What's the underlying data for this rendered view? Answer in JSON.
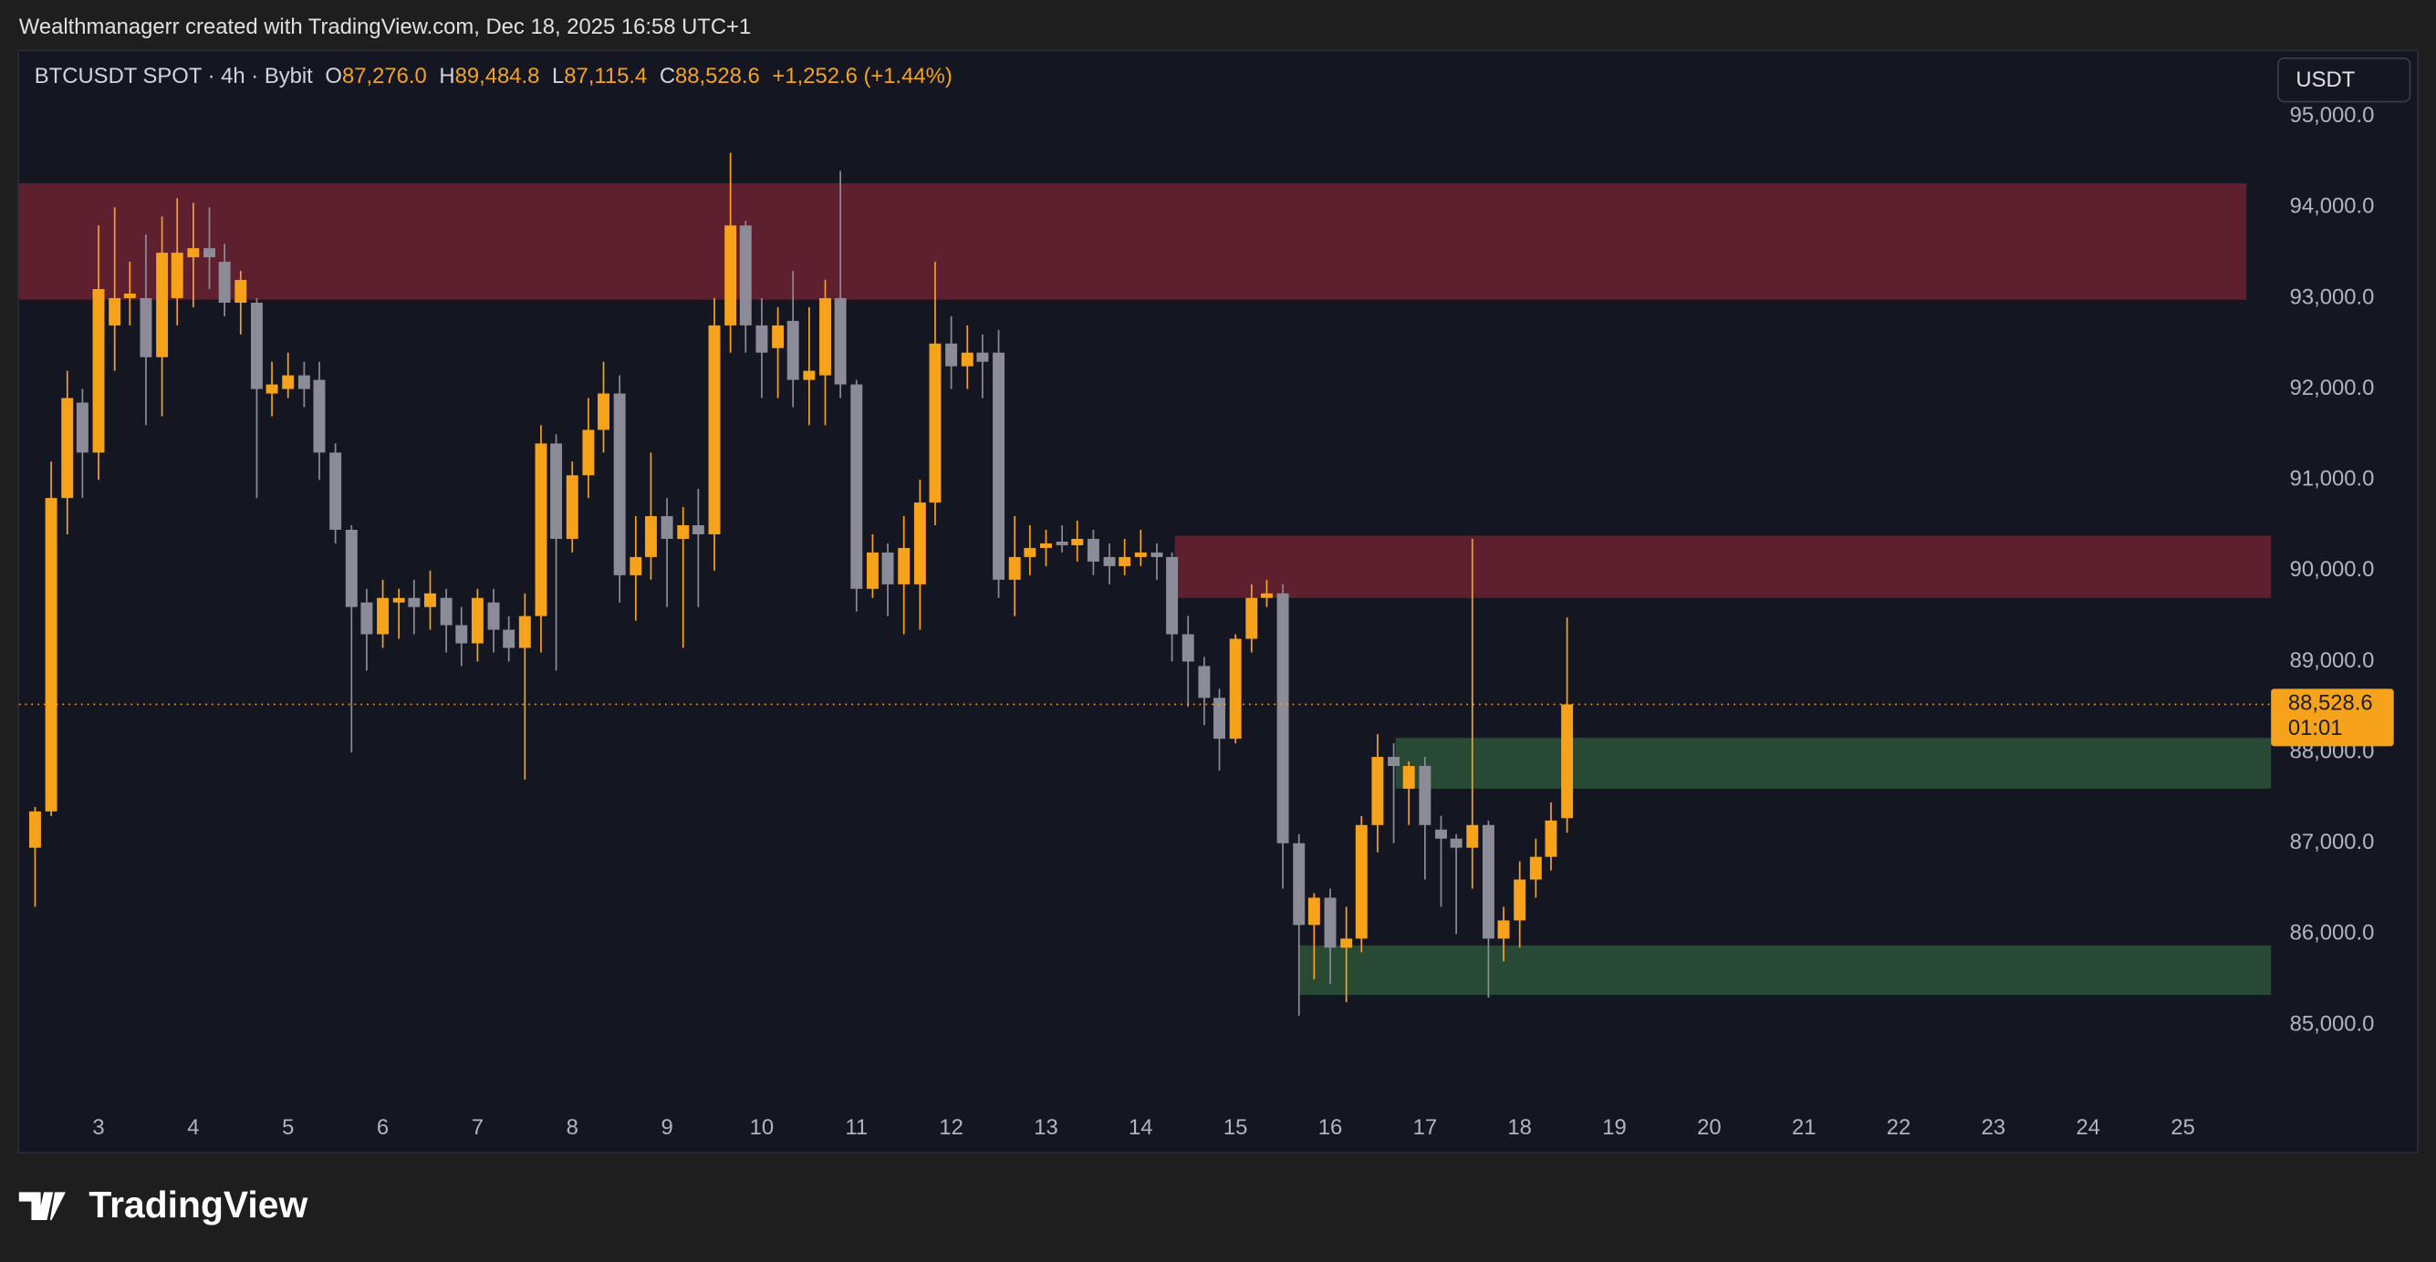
{
  "header": {
    "attribution": "Wealthmanagerr created with TradingView.com, Dec 18, 2025 16:58 UTC+1",
    "currency": "USDT",
    "brand": "TradingView"
  },
  "chart_data": {
    "type": "candlestick",
    "symbol": "BTCUSDT SPOT · 4h · Bybit",
    "legend_fields": [
      {
        "key": "O",
        "value": "87,276.0"
      },
      {
        "key": "H",
        "value": "89,484.8"
      },
      {
        "key": "L",
        "value": "87,115.4"
      },
      {
        "key": "C",
        "value": "88,528.6"
      }
    ],
    "change": "+1,252.6 (+1.44%)",
    "up_color": "#f7a21b",
    "down_color": "#8c8c98",
    "x": [
      2.33,
      2.5,
      2.67,
      2.83,
      3,
      3.17,
      3.33,
      3.5,
      3.67,
      3.83,
      4,
      4.17,
      4.33,
      4.5,
      4.67,
      4.83,
      5,
      5.17,
      5.33,
      5.5,
      5.67,
      5.83,
      6,
      6.17,
      6.33,
      6.5,
      6.67,
      6.83,
      7,
      7.17,
      7.33,
      7.5,
      7.67,
      7.83,
      8,
      8.17,
      8.33,
      8.5,
      8.67,
      8.83,
      9,
      9.17,
      9.33,
      9.5,
      9.67,
      9.83,
      10,
      10.17,
      10.33,
      10.5,
      10.67,
      10.83,
      11,
      11.17,
      11.33,
      11.5,
      11.67,
      11.83,
      12,
      12.17,
      12.33,
      12.5,
      12.67,
      12.83,
      13,
      13.17,
      13.33,
      13.5,
      13.67,
      13.83,
      14,
      14.17,
      14.33,
      14.5,
      14.67,
      14.83,
      15,
      15.17,
      15.33,
      15.5,
      15.67,
      15.83,
      16,
      16.17,
      16.33,
      16.5,
      16.67,
      16.83,
      17,
      17.17,
      17.33,
      17.5,
      17.67,
      17.83,
      18,
      18.17,
      18.33,
      18.5
    ],
    "open": [
      86950,
      87350,
      90800,
      91850,
      91300,
      92700,
      93000,
      93000,
      92350,
      93000,
      93450,
      93550,
      93400,
      92950,
      92950,
      91950,
      92000,
      92150,
      92100,
      91300,
      90450,
      89650,
      89300,
      89650,
      89700,
      89600,
      89700,
      89400,
      89200,
      89650,
      89350,
      89150,
      89500,
      91400,
      90350,
      91050,
      91550,
      91950,
      89950,
      90150,
      90600,
      90350,
      90500,
      90400,
      92700,
      93800,
      92700,
      92450,
      92750,
      92100,
      92150,
      93000,
      92050,
      89800,
      90200,
      89850,
      89850,
      90750,
      92500,
      92250,
      92400,
      92400,
      89900,
      90150,
      90250,
      90320,
      90280,
      90350,
      90150,
      90050,
      90150,
      90200,
      90150,
      89300,
      88950,
      88600,
      88150,
      89250,
      89700,
      89750,
      87000,
      86100,
      86400,
      85850,
      85950,
      87200,
      87950,
      87600,
      87850,
      87150,
      87050,
      86950,
      87200,
      85950,
      86150,
      86600,
      86850,
      87276
    ],
    "high": [
      87400,
      91200,
      92200,
      92000,
      93800,
      94000,
      93400,
      93700,
      93900,
      94100,
      94050,
      94000,
      93600,
      93300,
      93000,
      92300,
      92400,
      92300,
      92300,
      91400,
      90500,
      89800,
      89900,
      89800,
      89900,
      90000,
      89800,
      89600,
      89800,
      89800,
      89500,
      89750,
      91600,
      91500,
      91200,
      91900,
      92300,
      92150,
      90600,
      91300,
      90800,
      90700,
      90900,
      93000,
      94600,
      93850,
      93000,
      92900,
      93300,
      92900,
      93200,
      94400,
      92100,
      90400,
      90300,
      90600,
      91000,
      93400,
      92800,
      92700,
      92600,
      92650,
      90600,
      90500,
      90450,
      90500,
      90550,
      90450,
      90300,
      90350,
      90450,
      90300,
      90200,
      89500,
      89050,
      88700,
      89300,
      89850,
      89900,
      89850,
      87100,
      86450,
      86500,
      86300,
      87300,
      88200,
      88100,
      87900,
      87950,
      87300,
      87100,
      90350,
      87250,
      86300,
      86800,
      87050,
      87450,
      89484.8
    ],
    "low": [
      86300,
      87300,
      90400,
      90800,
      91000,
      92200,
      92700,
      91600,
      91700,
      92700,
      92900,
      93100,
      92800,
      92600,
      90800,
      91700,
      91900,
      91800,
      91000,
      90300,
      88000,
      88900,
      89150,
      89250,
      89300,
      89350,
      89100,
      88950,
      89000,
      89100,
      89000,
      87700,
      89100,
      88900,
      90200,
      90800,
      91300,
      89650,
      89450,
      89900,
      89600,
      89150,
      89600,
      90000,
      92400,
      92400,
      91900,
      91900,
      91800,
      91600,
      91600,
      91900,
      89550,
      89700,
      89500,
      89300,
      89350,
      90500,
      92000,
      92000,
      91900,
      89700,
      89500,
      89950,
      90050,
      90200,
      90100,
      89950,
      89850,
      89950,
      90050,
      89900,
      89000,
      88500,
      88300,
      87800,
      88100,
      89100,
      89600,
      86500,
      85100,
      85500,
      85450,
      85250,
      85800,
      86900,
      87000,
      87200,
      86600,
      86300,
      86000,
      86500,
      85300,
      85700,
      85850,
      86400,
      86700,
      87115.4
    ],
    "close": [
      87350,
      90800,
      91900,
      91300,
      93100,
      93000,
      93050,
      92350,
      93500,
      93500,
      93550,
      93450,
      92950,
      93200,
      92000,
      92050,
      92150,
      92000,
      91300,
      90450,
      89600,
      89300,
      89700,
      89700,
      89600,
      89750,
      89400,
      89200,
      89700,
      89350,
      89150,
      89500,
      91400,
      90350,
      91050,
      91550,
      91950,
      89950,
      90150,
      90600,
      90350,
      90500,
      90400,
      92700,
      93800,
      92700,
      92400,
      92700,
      92100,
      92200,
      93000,
      92050,
      89800,
      90200,
      89850,
      90250,
      90750,
      92500,
      92250,
      92400,
      92300,
      89900,
      90150,
      90250,
      90300,
      90280,
      90350,
      90100,
      90050,
      90150,
      90200,
      90150,
      89300,
      89000,
      88600,
      88150,
      89250,
      89700,
      89750,
      87000,
      86100,
      86400,
      85850,
      85950,
      87200,
      87950,
      87850,
      87850,
      87200,
      87050,
      86950,
      87200,
      85950,
      86150,
      86600,
      86850,
      87250,
      88528.6
    ],
    "zones": [
      {
        "x": [
          2.16,
          25.67
        ],
        "y": [
          92983,
          94265
        ],
        "color": "#6b2230"
      },
      {
        "x": [
          14.36,
          25.93
        ],
        "y": [
          89700,
          90385
        ],
        "color": "#6b2230"
      },
      {
        "x": [
          16.69,
          25.93
        ],
        "y": [
          87600,
          88160
        ],
        "color": "#2b5236"
      },
      {
        "x": [
          15.67,
          25.93
        ],
        "y": [
          85330,
          85875
        ],
        "color": "#2b5236"
      }
    ],
    "last_price": {
      "value": 88528.6,
      "label": "88,528.6"
    },
    "countdown": "01:01",
    "xlim": [
      2.16,
      25.93
    ],
    "ylim": [
      84150,
      95735
    ],
    "xticks": [
      3,
      4,
      5,
      6,
      7,
      8,
      9,
      10,
      11,
      12,
      13,
      14,
      15,
      16,
      17,
      18,
      19,
      20,
      21,
      22,
      23,
      24,
      25
    ],
    "yticks": [
      {
        "value": 85000,
        "label": "85,000.0"
      },
      {
        "value": 86000,
        "label": "86,000.0"
      },
      {
        "value": 87000,
        "label": "87,000.0"
      },
      {
        "value": 88000,
        "label": "88,000.0"
      },
      {
        "value": 89000,
        "label": "89,000.0"
      },
      {
        "value": 90000,
        "label": "90,000.0"
      },
      {
        "value": 91000,
        "label": "91,000.0"
      },
      {
        "value": 92000,
        "label": "92,000.0"
      },
      {
        "value": 93000,
        "label": "93,000.0"
      },
      {
        "value": 94000,
        "label": "94,000.0"
      },
      {
        "value": 95000,
        "label": "95,000.0"
      }
    ],
    "grid": false
  }
}
